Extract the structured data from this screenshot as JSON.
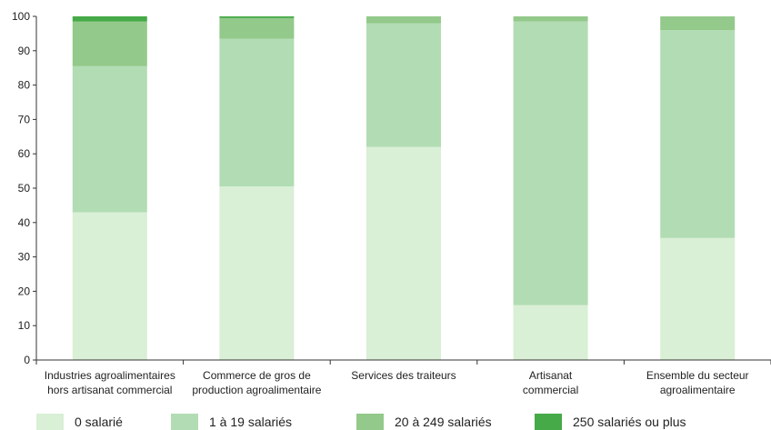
{
  "chart_data": {
    "type": "bar",
    "stacked": true,
    "categories": [
      [
        "Industries agroalimentaires",
        "hors artisanat commercial"
      ],
      [
        "Commerce de gros de",
        "production agroalimentaire"
      ],
      [
        "Services des traiteurs"
      ],
      [
        "Artisanat",
        "commercial"
      ],
      [
        "Ensemble du secteur",
        "agroalimentaire"
      ]
    ],
    "series": [
      {
        "name": "0 salarié",
        "color": "#d9efd6",
        "values": [
          43,
          50.5,
          62,
          16,
          35.5
        ]
      },
      {
        "name": "1 à 19 salariés",
        "color": "#b2dcb3",
        "values": [
          42.5,
          43,
          36,
          82.5,
          60.5
        ]
      },
      {
        "name": "20 à 249 salariés",
        "color": "#93c98a",
        "values": [
          13,
          6,
          2,
          1.5,
          4
        ]
      },
      {
        "name": "250 salariés ou plus",
        "color": "#45aa47",
        "values": [
          1.5,
          0.5,
          0,
          0,
          0
        ]
      }
    ],
    "ylim": [
      0,
      100
    ],
    "yticks": [
      0,
      10,
      20,
      30,
      40,
      50,
      60,
      70,
      80,
      90,
      100
    ],
    "grid": false,
    "legend": "bottom"
  }
}
